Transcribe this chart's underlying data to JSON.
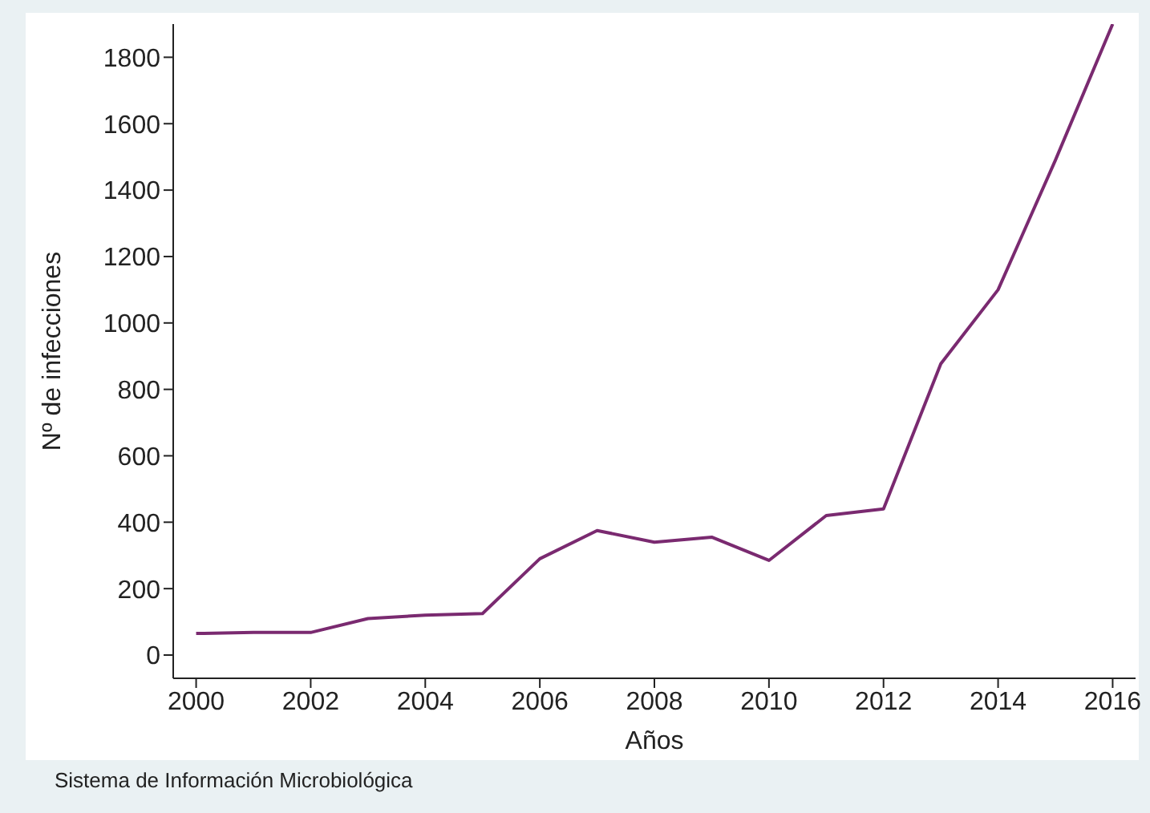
{
  "chart_data": {
    "type": "line",
    "xlabel": "Años",
    "ylabel": "Nº de infecciones",
    "annotations": [
      "Sistema de Información Microbiológica"
    ],
    "x": [
      2000,
      2001,
      2002,
      2003,
      2004,
      2005,
      2006,
      2007,
      2008,
      2009,
      2010,
      2011,
      2012,
      2013,
      2014,
      2015,
      2016
    ],
    "series": [
      {
        "color": "#7a2a70",
        "values": [
          65,
          68,
          68,
          110,
          120,
          125,
          290,
          375,
          340,
          355,
          285,
          420,
          440,
          877,
          1100,
          1490,
          1900
        ]
      }
    ],
    "xlim": [
      1999.6,
      2016.4
    ],
    "xticks": [
      2000,
      2002,
      2004,
      2006,
      2008,
      2010,
      2012,
      2014,
      2016
    ],
    "ylim": [
      -70,
      1900
    ],
    "yticks": [
      0,
      200,
      400,
      600,
      800,
      1000,
      1200,
      1400,
      1600,
      1800
    ],
    "grid": false,
    "legend": false,
    "marker": "none",
    "line_style": "solid"
  }
}
